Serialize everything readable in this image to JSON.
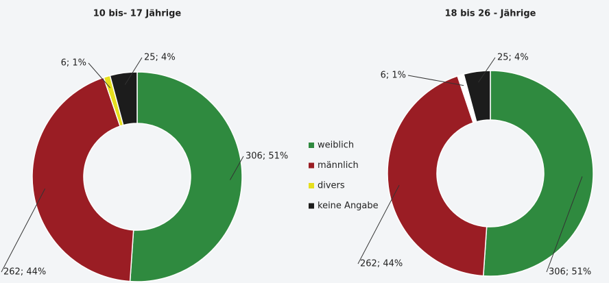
{
  "legend": {
    "labels": [
      "weiblich",
      "männlich",
      "divers",
      "keine Angabe"
    ],
    "colors": [
      "#2f8a3f",
      "#9a1d24",
      "#e6df1e",
      "#1c1c1c"
    ]
  },
  "chart_data": [
    {
      "type": "donut",
      "title": "10 bis- 17 Jährige",
      "values": [
        306,
        262,
        6,
        25
      ],
      "value_labels": [
        "306; 51%",
        "262; 44%",
        "6; 1%",
        "25; 4%"
      ],
      "colors": [
        "#2f8a3f",
        "#9a1d24",
        "#e6df1e",
        "#1c1c1c"
      ]
    },
    {
      "type": "donut",
      "title": "18 bis 26 - Jährige",
      "values": [
        306,
        262,
        6,
        25
      ],
      "value_labels": [
        "306; 51%",
        "262; 44%",
        "6; 1%",
        "25; 4%"
      ],
      "colors": [
        "#2f8a3f",
        "#9a1d24",
        "#ffffff",
        "#1c1c1c"
      ]
    }
  ]
}
